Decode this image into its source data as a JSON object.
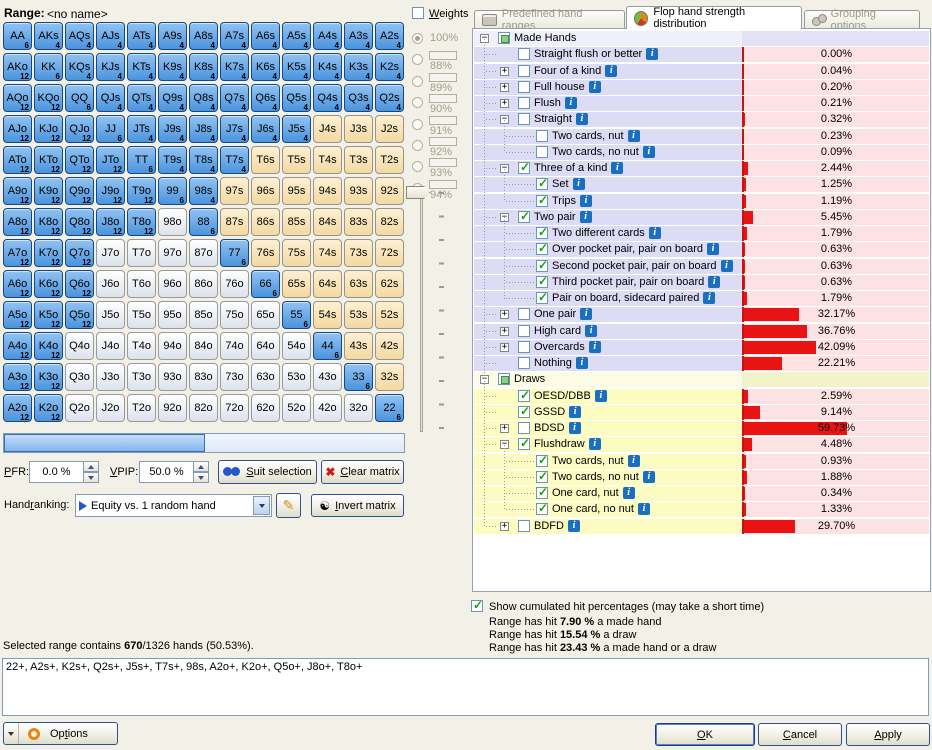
{
  "range_header": {
    "label": "Range:",
    "value": "<no name>"
  },
  "weights": {
    "label": {
      "t": "Weights",
      "u": 0
    },
    "options": [
      {
        "label": "100%",
        "box": false,
        "selected": true
      },
      {
        "label": "88%",
        "box": true,
        "selected": false
      },
      {
        "label": "89%",
        "box": true,
        "selected": false
      },
      {
        "label": "90%",
        "box": true,
        "selected": false
      },
      {
        "label": "91%",
        "box": true,
        "selected": false
      },
      {
        "label": "92%",
        "box": true,
        "selected": false
      },
      {
        "label": "93%",
        "box": true,
        "selected": false
      },
      {
        "label": "94%",
        "box": true,
        "selected": false
      }
    ]
  },
  "matrix": {
    "rows": [
      [
        [
          "AA",
          6,
          "b"
        ],
        [
          "AKs",
          4,
          "b"
        ],
        [
          "AQs",
          4,
          "b"
        ],
        [
          "AJs",
          4,
          "b"
        ],
        [
          "ATs",
          4,
          "b"
        ],
        [
          "A9s",
          4,
          "b"
        ],
        [
          "A8s",
          4,
          "b"
        ],
        [
          "A7s",
          4,
          "b"
        ],
        [
          "A6s",
          4,
          "b"
        ],
        [
          "A5s",
          4,
          "b"
        ],
        [
          "A4s",
          4,
          "b"
        ],
        [
          "A3s",
          4,
          "b"
        ],
        [
          "A2s",
          4,
          "b"
        ]
      ],
      [
        [
          "AKo",
          12,
          "b"
        ],
        [
          "KK",
          6,
          "b"
        ],
        [
          "KQs",
          4,
          "b"
        ],
        [
          "KJs",
          4,
          "b"
        ],
        [
          "KTs",
          4,
          "b"
        ],
        [
          "K9s",
          4,
          "b"
        ],
        [
          "K8s",
          4,
          "b"
        ],
        [
          "K7s",
          4,
          "b"
        ],
        [
          "K6s",
          4,
          "b"
        ],
        [
          "K5s",
          4,
          "b"
        ],
        [
          "K4s",
          4,
          "b"
        ],
        [
          "K3s",
          4,
          "b"
        ],
        [
          "K2s",
          4,
          "b"
        ]
      ],
      [
        [
          "AQo",
          12,
          "b"
        ],
        [
          "KQo",
          12,
          "b"
        ],
        [
          "QQ",
          6,
          "b"
        ],
        [
          "QJs",
          4,
          "b"
        ],
        [
          "QTs",
          4,
          "b"
        ],
        [
          "Q9s",
          4,
          "b"
        ],
        [
          "Q8s",
          4,
          "b"
        ],
        [
          "Q7s",
          4,
          "b"
        ],
        [
          "Q6s",
          4,
          "b"
        ],
        [
          "Q5s",
          4,
          "b"
        ],
        [
          "Q4s",
          4,
          "b"
        ],
        [
          "Q3s",
          4,
          "b"
        ],
        [
          "Q2s",
          4,
          "b"
        ]
      ],
      [
        [
          "AJo",
          12,
          "b"
        ],
        [
          "KJo",
          12,
          "b"
        ],
        [
          "QJo",
          12,
          "b"
        ],
        [
          "JJ",
          6,
          "b"
        ],
        [
          "JTs",
          4,
          "b"
        ],
        [
          "J9s",
          4,
          "b"
        ],
        [
          "J8s",
          4,
          "b"
        ],
        [
          "J7s",
          4,
          "b"
        ],
        [
          "J6s",
          4,
          "b"
        ],
        [
          "J5s",
          4,
          "b"
        ],
        [
          "J4s",
          null,
          "t"
        ],
        [
          "J3s",
          null,
          "t"
        ],
        [
          "J2s",
          null,
          "t"
        ]
      ],
      [
        [
          "ATo",
          12,
          "b"
        ],
        [
          "KTo",
          12,
          "b"
        ],
        [
          "QTo",
          12,
          "b"
        ],
        [
          "JTo",
          12,
          "b"
        ],
        [
          "TT",
          6,
          "b"
        ],
        [
          "T9s",
          4,
          "b"
        ],
        [
          "T8s",
          4,
          "b"
        ],
        [
          "T7s",
          4,
          "b"
        ],
        [
          "T6s",
          null,
          "t"
        ],
        [
          "T5s",
          null,
          "t"
        ],
        [
          "T4s",
          null,
          "t"
        ],
        [
          "T3s",
          null,
          "t"
        ],
        [
          "T2s",
          null,
          "t"
        ]
      ],
      [
        [
          "A9o",
          12,
          "b"
        ],
        [
          "K9o",
          12,
          "b"
        ],
        [
          "Q9o",
          12,
          "b"
        ],
        [
          "J9o",
          12,
          "b"
        ],
        [
          "T9o",
          12,
          "b"
        ],
        [
          "99",
          6,
          "b"
        ],
        [
          "98s",
          4,
          "b"
        ],
        [
          "97s",
          null,
          "t"
        ],
        [
          "96s",
          null,
          "t"
        ],
        [
          "95s",
          null,
          "t"
        ],
        [
          "94s",
          null,
          "t"
        ],
        [
          "93s",
          null,
          "t"
        ],
        [
          "92s",
          null,
          "t"
        ]
      ],
      [
        [
          "A8o",
          12,
          "b"
        ],
        [
          "K8o",
          12,
          "b"
        ],
        [
          "Q8o",
          12,
          "b"
        ],
        [
          "J8o",
          12,
          "b"
        ],
        [
          "T8o",
          12,
          "b"
        ],
        [
          "98o",
          null,
          "w"
        ],
        [
          "88",
          6,
          "b"
        ],
        [
          "87s",
          null,
          "t"
        ],
        [
          "86s",
          null,
          "t"
        ],
        [
          "85s",
          null,
          "t"
        ],
        [
          "84s",
          null,
          "t"
        ],
        [
          "83s",
          null,
          "t"
        ],
        [
          "82s",
          null,
          "t"
        ]
      ],
      [
        [
          "A7o",
          12,
          "b"
        ],
        [
          "K7o",
          12,
          "b"
        ],
        [
          "Q7o",
          12,
          "b"
        ],
        [
          "J7o",
          null,
          "w"
        ],
        [
          "T7o",
          null,
          "w"
        ],
        [
          "97o",
          null,
          "w"
        ],
        [
          "87o",
          null,
          "w"
        ],
        [
          "77",
          6,
          "b"
        ],
        [
          "76s",
          null,
          "t"
        ],
        [
          "75s",
          null,
          "t"
        ],
        [
          "74s",
          null,
          "t"
        ],
        [
          "73s",
          null,
          "t"
        ],
        [
          "72s",
          null,
          "t"
        ]
      ],
      [
        [
          "A6o",
          12,
          "b"
        ],
        [
          "K6o",
          12,
          "b"
        ],
        [
          "Q6o",
          12,
          "b"
        ],
        [
          "J6o",
          null,
          "w"
        ],
        [
          "T6o",
          null,
          "w"
        ],
        [
          "96o",
          null,
          "w"
        ],
        [
          "86o",
          null,
          "w"
        ],
        [
          "76o",
          null,
          "w"
        ],
        [
          "66",
          6,
          "b"
        ],
        [
          "65s",
          null,
          "t"
        ],
        [
          "64s",
          null,
          "t"
        ],
        [
          "63s",
          null,
          "t"
        ],
        [
          "62s",
          null,
          "t"
        ]
      ],
      [
        [
          "A5o",
          12,
          "b"
        ],
        [
          "K5o",
          12,
          "b"
        ],
        [
          "Q5o",
          12,
          "b"
        ],
        [
          "J5o",
          null,
          "w"
        ],
        [
          "T5o",
          null,
          "w"
        ],
        [
          "95o",
          null,
          "w"
        ],
        [
          "85o",
          null,
          "w"
        ],
        [
          "75o",
          null,
          "w"
        ],
        [
          "65o",
          null,
          "w"
        ],
        [
          "55",
          6,
          "b"
        ],
        [
          "54s",
          null,
          "t"
        ],
        [
          "53s",
          null,
          "t"
        ],
        [
          "52s",
          null,
          "t"
        ]
      ],
      [
        [
          "A4o",
          12,
          "b"
        ],
        [
          "K4o",
          12,
          "b"
        ],
        [
          "Q4o",
          null,
          "w"
        ],
        [
          "J4o",
          null,
          "w"
        ],
        [
          "T4o",
          null,
          "w"
        ],
        [
          "94o",
          null,
          "w"
        ],
        [
          "84o",
          null,
          "w"
        ],
        [
          "74o",
          null,
          "w"
        ],
        [
          "64o",
          null,
          "w"
        ],
        [
          "54o",
          null,
          "w"
        ],
        [
          "44",
          6,
          "b"
        ],
        [
          "43s",
          null,
          "t"
        ],
        [
          "42s",
          null,
          "t"
        ]
      ],
      [
        [
          "A3o",
          12,
          "b"
        ],
        [
          "K3o",
          12,
          "b"
        ],
        [
          "Q3o",
          null,
          "w"
        ],
        [
          "J3o",
          null,
          "w"
        ],
        [
          "T3o",
          null,
          "w"
        ],
        [
          "93o",
          null,
          "w"
        ],
        [
          "83o",
          null,
          "w"
        ],
        [
          "73o",
          null,
          "w"
        ],
        [
          "63o",
          null,
          "w"
        ],
        [
          "53o",
          null,
          "w"
        ],
        [
          "43o",
          null,
          "w"
        ],
        [
          "33",
          6,
          "b"
        ],
        [
          "32s",
          null,
          "t"
        ]
      ],
      [
        [
          "A2o",
          12,
          "b"
        ],
        [
          "K2o",
          12,
          "b"
        ],
        [
          "Q2o",
          null,
          "w"
        ],
        [
          "J2o",
          null,
          "w"
        ],
        [
          "T2o",
          null,
          "w"
        ],
        [
          "92o",
          null,
          "w"
        ],
        [
          "82o",
          null,
          "w"
        ],
        [
          "72o",
          null,
          "w"
        ],
        [
          "62o",
          null,
          "w"
        ],
        [
          "52o",
          null,
          "w"
        ],
        [
          "42o",
          null,
          "w"
        ],
        [
          "32o",
          null,
          "w"
        ],
        [
          "22",
          6,
          "b"
        ]
      ]
    ]
  },
  "controls": {
    "pfr_label": {
      "t": "PFR:",
      "u": 0
    },
    "pfr_value": "0.0 %",
    "vpip_label": {
      "t": "VPIP:",
      "u": 0
    },
    "vpip_value": "50.0 %",
    "suit_selection": {
      "t": "Suit selection",
      "u": 0
    },
    "clear_matrix": {
      "t": "Clear matrix",
      "u": 0
    },
    "handranking_label": {
      "t": "Handranking:",
      "u": 4
    },
    "handranking_value": "Equity vs. 1 random hand",
    "invert_matrix": {
      "t": "Invert matrix",
      "u": 0
    }
  },
  "tabs": [
    {
      "label": "Predefined hand ranges",
      "active": false
    },
    {
      "label": "Flop hand strength distribution",
      "active": true
    },
    {
      "label": "Grouping options",
      "active": false
    }
  ],
  "tree": {
    "rows": [
      {
        "l": "Made Hands",
        "p": "",
        "v": 0,
        "lv": 0,
        "c": "h",
        "e": "-",
        "s": "m"
      },
      {
        "l": "Straight flush or better",
        "p": "0.00%",
        "v": 0.0,
        "lv": 1,
        "c": "u",
        "e": "",
        "s": "m"
      },
      {
        "l": "Four of a kind",
        "p": "0.04%",
        "v": 0.04,
        "lv": 1,
        "c": "u",
        "e": "+",
        "s": "m"
      },
      {
        "l": "Full house",
        "p": "0.20%",
        "v": 0.2,
        "lv": 1,
        "c": "u",
        "e": "+",
        "s": "m"
      },
      {
        "l": "Flush",
        "p": "0.21%",
        "v": 0.21,
        "lv": 1,
        "c": "u",
        "e": "+",
        "s": "m"
      },
      {
        "l": "Straight",
        "p": "0.32%",
        "v": 0.32,
        "lv": 1,
        "c": "u",
        "e": "-",
        "s": "m"
      },
      {
        "l": "Two cards, nut",
        "p": "0.23%",
        "v": 0.23,
        "lv": 2,
        "c": "u",
        "e": "",
        "s": "m"
      },
      {
        "l": "Two cards, no nut",
        "p": "0.09%",
        "v": 0.09,
        "lv": 2,
        "c": "u",
        "e": "",
        "s": "m"
      },
      {
        "l": "Three of a kind",
        "p": "2.44%",
        "v": 2.44,
        "lv": 1,
        "c": "y",
        "e": "-",
        "s": "m"
      },
      {
        "l": "Set",
        "p": "1.25%",
        "v": 1.25,
        "lv": 2,
        "c": "y",
        "e": "",
        "s": "m"
      },
      {
        "l": "Trips",
        "p": "1.19%",
        "v": 1.19,
        "lv": 2,
        "c": "y",
        "e": "",
        "s": "m"
      },
      {
        "l": "Two pair",
        "p": "5.45%",
        "v": 5.45,
        "lv": 1,
        "c": "y",
        "e": "-",
        "s": "m"
      },
      {
        "l": "Two different cards",
        "p": "1.79%",
        "v": 1.79,
        "lv": 2,
        "c": "y",
        "e": "",
        "s": "m"
      },
      {
        "l": "Over pocket pair, pair on board",
        "p": "0.63%",
        "v": 0.63,
        "lv": 2,
        "c": "y",
        "e": "",
        "s": "m"
      },
      {
        "l": "Second pocket pair, pair on board",
        "p": "0.63%",
        "v": 0.63,
        "lv": 2,
        "c": "y",
        "e": "",
        "s": "m"
      },
      {
        "l": "Third pocket pair, pair on board",
        "p": "0.63%",
        "v": 0.63,
        "lv": 2,
        "c": "y",
        "e": "",
        "s": "m"
      },
      {
        "l": "Pair on board, sidecard paired",
        "p": "1.79%",
        "v": 1.79,
        "lv": 2,
        "c": "y",
        "e": "",
        "s": "m"
      },
      {
        "l": "One pair",
        "p": "32.17%",
        "v": 32.17,
        "lv": 1,
        "c": "u",
        "e": "+",
        "s": "m"
      },
      {
        "l": "High card",
        "p": "36.76%",
        "v": 36.76,
        "lv": 1,
        "c": "u",
        "e": "+",
        "s": "m"
      },
      {
        "l": "Overcards",
        "p": "42.09%",
        "v": 42.09,
        "lv": 1,
        "c": "u",
        "e": "+",
        "s": "m"
      },
      {
        "l": "Nothing",
        "p": "22.21%",
        "v": 22.21,
        "lv": 1,
        "c": "u",
        "e": "",
        "s": "m"
      },
      {
        "l": "Draws",
        "p": "",
        "v": 0,
        "lv": 0,
        "c": "h",
        "e": "-",
        "s": "d"
      },
      {
        "l": "OESD/DBB",
        "p": "2.59%",
        "v": 2.59,
        "lv": 1,
        "c": "y",
        "e": "",
        "s": "d"
      },
      {
        "l": "GSSD",
        "p": "9.14%",
        "v": 9.14,
        "lv": 1,
        "c": "y",
        "e": "",
        "s": "d"
      },
      {
        "l": "BDSD",
        "p": "59.73%",
        "v": 59.73,
        "lv": 1,
        "c": "u",
        "e": "+",
        "s": "d"
      },
      {
        "l": "Flushdraw",
        "p": "4.48%",
        "v": 4.48,
        "lv": 1,
        "c": "y",
        "e": "-",
        "s": "d"
      },
      {
        "l": "Two cards, nut",
        "p": "0.93%",
        "v": 0.93,
        "lv": 2,
        "c": "y",
        "e": "",
        "s": "d"
      },
      {
        "l": "Two cards, no nut",
        "p": "1.88%",
        "v": 1.88,
        "lv": 2,
        "c": "y",
        "e": "",
        "s": "d"
      },
      {
        "l": "One card, nut",
        "p": "0.34%",
        "v": 0.34,
        "lv": 2,
        "c": "y",
        "e": "",
        "s": "d"
      },
      {
        "l": "One card, no nut",
        "p": "1.33%",
        "v": 1.33,
        "lv": 2,
        "c": "y",
        "e": "",
        "s": "d"
      },
      {
        "l": "BDFD",
        "p": "29.70%",
        "v": 29.7,
        "lv": 1,
        "c": "u",
        "e": "+",
        "s": "d"
      }
    ]
  },
  "footer": {
    "cumulated_label": "Show cumulated hit percentages (may take a short time)",
    "hit_lines": [
      {
        "pre": "Range has hit ",
        "val": "7.90 %",
        "post": " a made hand"
      },
      {
        "pre": "Range has hit ",
        "val": "15.54 %",
        "post": " a draw"
      },
      {
        "pre": "Range has hit ",
        "val": "23.43 %",
        "post": " a made hand or a draw"
      }
    ]
  },
  "summary": {
    "pre": "Selected range contains ",
    "bold": "670",
    "post": "/1326 hands (50.53%)."
  },
  "range_text": "22+, A2s+, K2s+, Q2s+, J5s+, T7s+, 98s, A2o+, K2o+, Q5o+, J8o+, T8o+",
  "bottom_buttons": {
    "options": {
      "t": "Options",
      "u": 2
    },
    "ok": {
      "t": "OK",
      "u": 0
    },
    "cancel": {
      "t": "Cancel",
      "u": 0
    },
    "apply": {
      "t": "Apply",
      "u": 0
    }
  },
  "colors": {
    "selected_cell": "#4a93dd",
    "suited_unselected": "#f3d9a2",
    "bar_red": "#e81414",
    "row_lavender": "#dcdcf4",
    "row_yellow": "#fcfcc2",
    "bar_bg_pink": "#fce2e2"
  }
}
